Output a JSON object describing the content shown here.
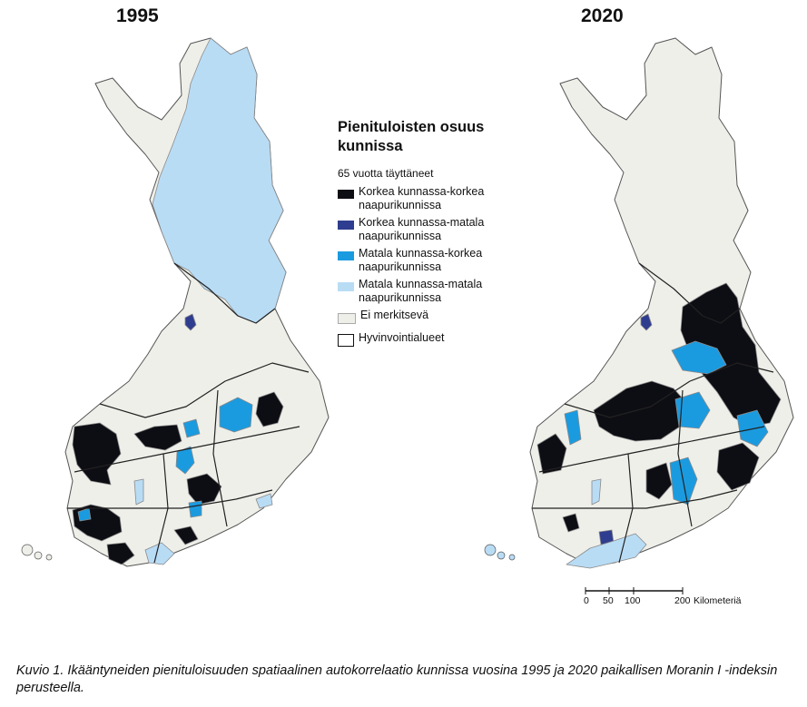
{
  "maps": {
    "left_title": "1995",
    "right_title": "2020"
  },
  "legend": {
    "title": "Pienituloisten osuus kunnissa",
    "subtitle": "65 vuotta täyttäneet",
    "items": [
      {
        "label": "Korkea kunnassa-korkea naapurikunnissa",
        "color": "#0d0d14"
      },
      {
        "label": "Korkea kunnassa-matala naapurikunnissa",
        "color": "#2e3d8f"
      },
      {
        "label": "Matala kunnassa-korkea naapurikunnissa",
        "color": "#1a9be0"
      },
      {
        "label": "Matala kunnassa-matala naapurikunnissa",
        "color": "#b9dcf5"
      },
      {
        "label": "Ei merkitsevä",
        "color": "#efefea"
      }
    ],
    "boundary_label": "Hyvinvointialueet"
  },
  "scale": {
    "ticks": [
      "0",
      "50",
      "100",
      "200"
    ],
    "unit": "Kilometeriä"
  },
  "caption": "Kuvio 1. Ikääntyneiden pienituloisuuden spatiaalinen autokorrelaatio kunnissa vuosina 1995 ja 2020 paikallisen Moranin I -indeksin perusteella."
}
